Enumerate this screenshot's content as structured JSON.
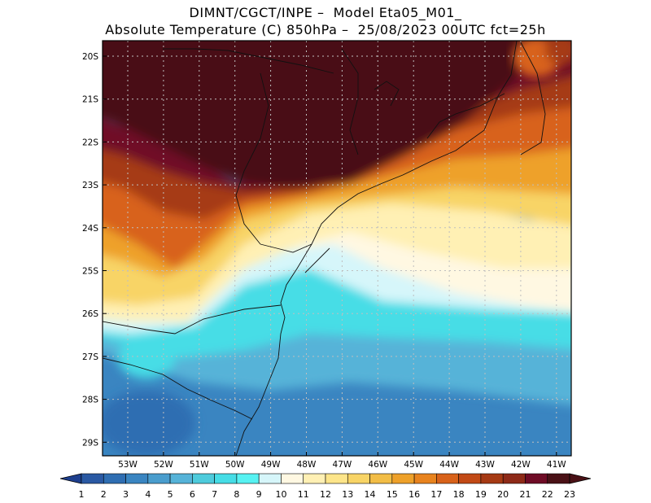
{
  "title": {
    "line1": "DIMNT/CGCT/INPE –  Model Eta05_M01_",
    "line2": "Absolute Temperature (C) 850hPa –  25/08/2023 00UTC fct=25h"
  },
  "map": {
    "lat_ticks": [
      "20S",
      "21S",
      "22S",
      "23S",
      "24S",
      "25S",
      "26S",
      "27S",
      "28S",
      "29S"
    ],
    "lon_ticks": [
      "53W",
      "52W",
      "51W",
      "50W",
      "49W",
      "48W",
      "47W",
      "46W",
      "45W",
      "44W",
      "43W",
      "42W",
      "41W"
    ]
  },
  "colorbar": {
    "labels": [
      "1",
      "2",
      "3",
      "4",
      "5",
      "6",
      "7",
      "8",
      "9",
      "10",
      "11",
      "12",
      "13",
      "14",
      "15",
      "16",
      "17",
      "18",
      "19",
      "20",
      "21",
      "22",
      "23"
    ],
    "colors": [
      "#1d3f8e",
      "#2a59a3",
      "#2f6eb2",
      "#3a85c1",
      "#4a9dcd",
      "#56b3d8",
      "#4ecbdc",
      "#46dde6",
      "#57f2f2",
      "#d6f6fa",
      "#fff8e2",
      "#fff0b4",
      "#fde58a",
      "#f8d466",
      "#f2bd46",
      "#eea12a",
      "#e8831e",
      "#d8621a",
      "#c24a16",
      "#a63a14",
      "#8e2a18",
      "#6f0c26",
      "#4a1116"
    ]
  }
}
